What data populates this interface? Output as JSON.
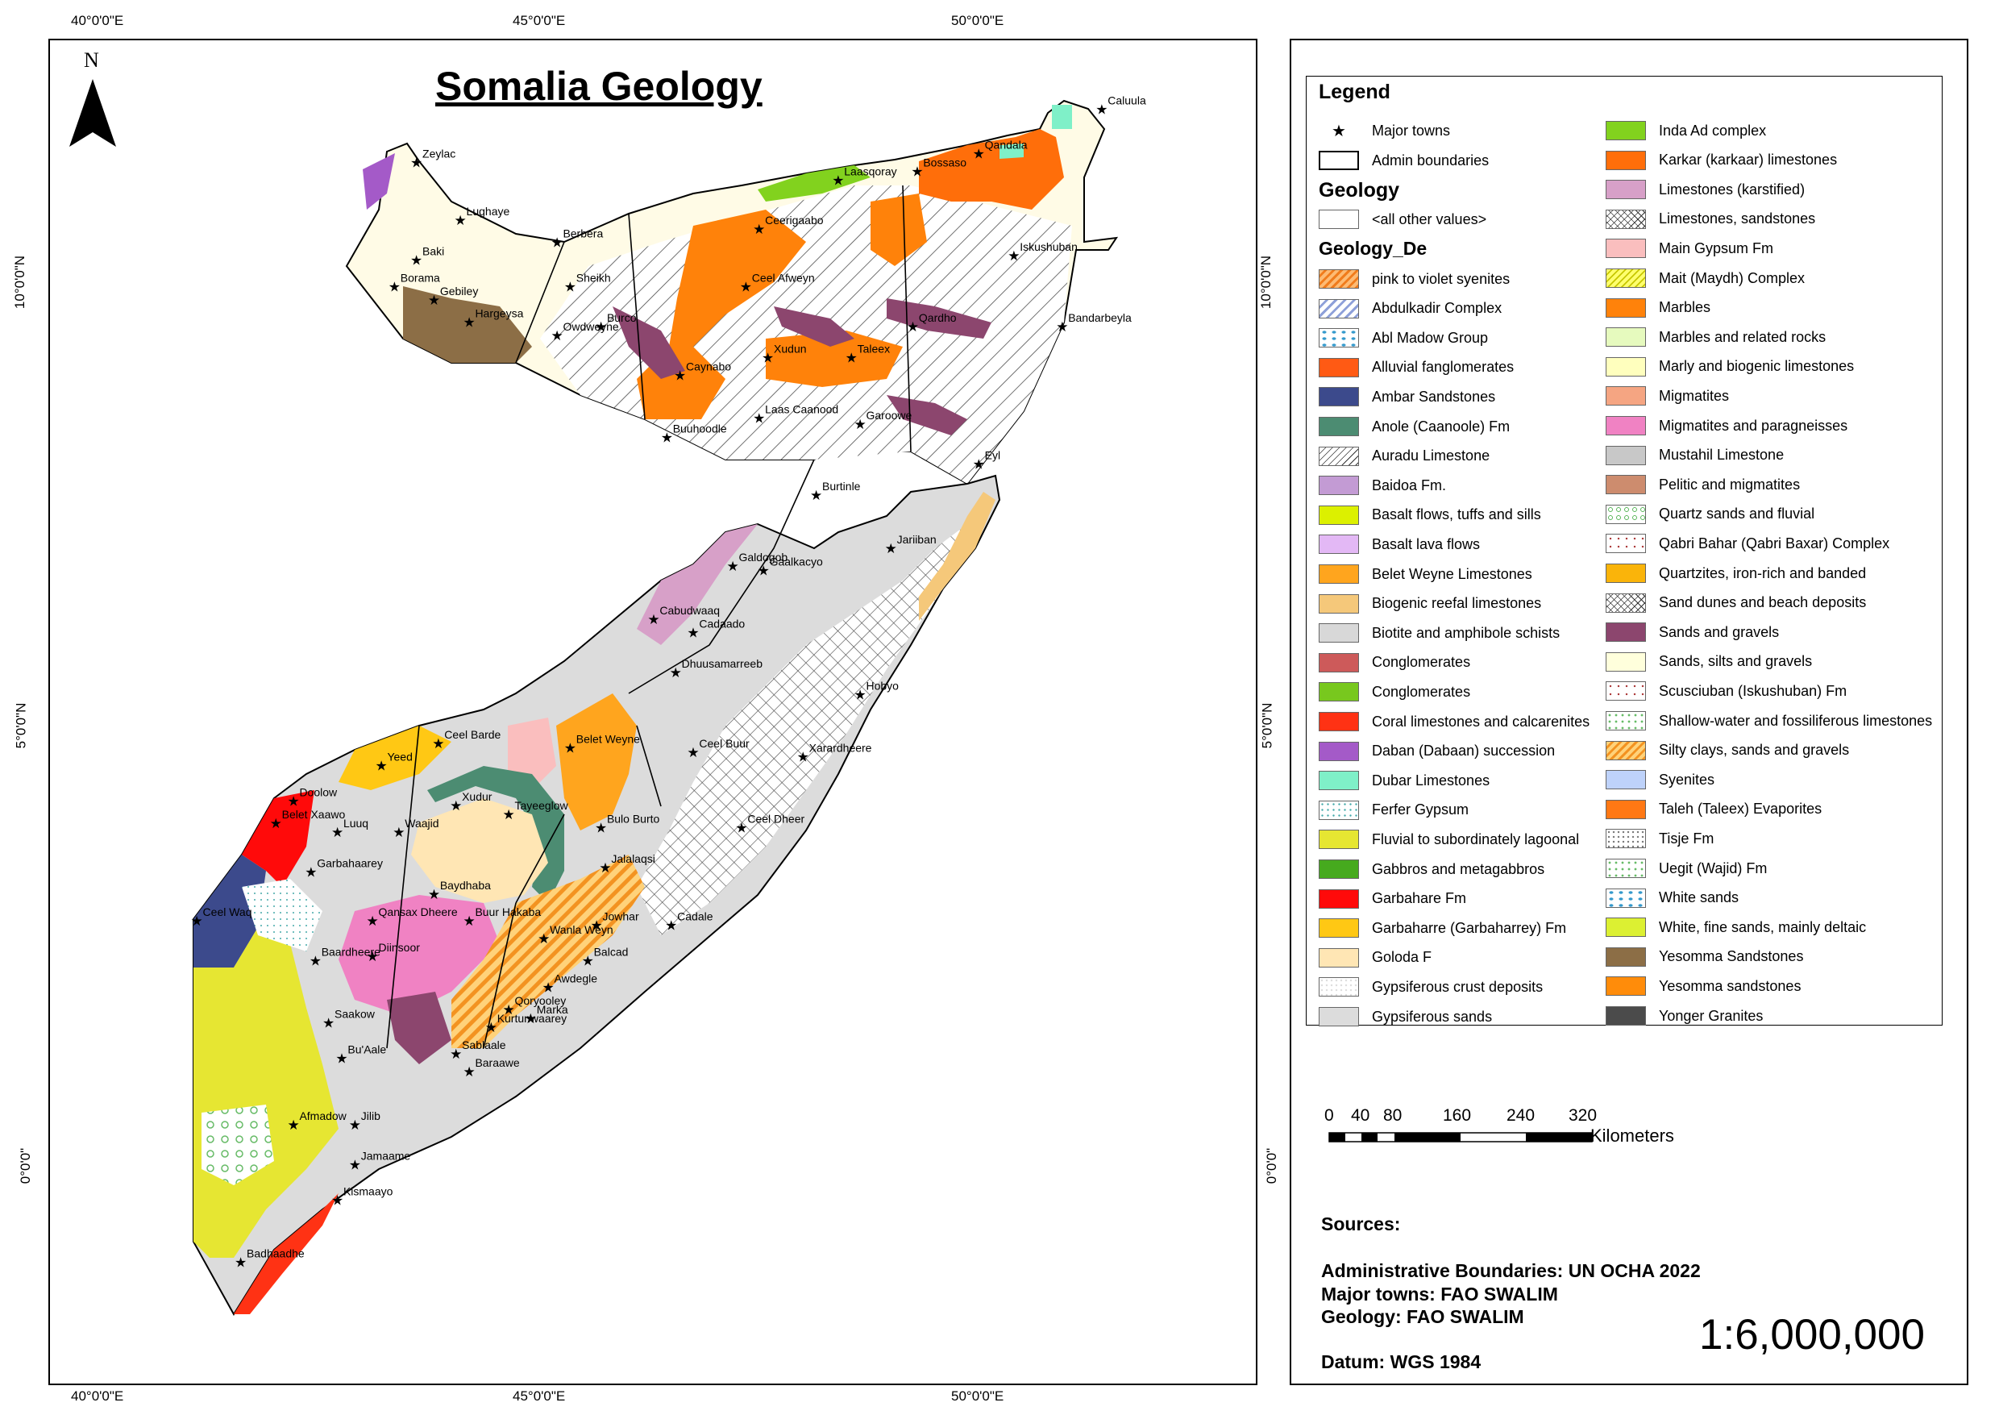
{
  "map": {
    "title": "Somalia Geology",
    "north_label": "N",
    "graticule": {
      "top": [
        "40°0'0\"E",
        "45°0'0\"E",
        "50°0'0\"E"
      ],
      "bottom": [
        "40°0'0\"E",
        "45°0'0\"E",
        "50°0'0\"E"
      ],
      "left": [
        "10°0'0\"N",
        "5°0'0\"N",
        "0°0'0\""
      ],
      "right": [
        "10°0'0\"N",
        "5°0'0\"N",
        "0°0'0\""
      ]
    },
    "towns": [
      {
        "name": "Caluula",
        "lon": 51.25,
        "lat": 11.95
      },
      {
        "name": "Qandala",
        "lon": 49.85,
        "lat": 11.45
      },
      {
        "name": "Bossaso",
        "lon": 49.15,
        "lat": 11.25
      },
      {
        "name": "Laasqoray",
        "lon": 48.25,
        "lat": 11.15
      },
      {
        "name": "Zeylac",
        "lon": 43.45,
        "lat": 11.35
      },
      {
        "name": "Lughaye",
        "lon": 43.95,
        "lat": 10.7
      },
      {
        "name": "Berbera",
        "lon": 45.05,
        "lat": 10.45
      },
      {
        "name": "Ceerigaabo",
        "lon": 47.35,
        "lat": 10.6
      },
      {
        "name": "Iskushuban",
        "lon": 50.25,
        "lat": 10.3
      },
      {
        "name": "Baki",
        "lon": 43.45,
        "lat": 10.25
      },
      {
        "name": "Borama",
        "lon": 43.2,
        "lat": 9.95
      },
      {
        "name": "Sheikh",
        "lon": 45.2,
        "lat": 9.95
      },
      {
        "name": "Ceel Afweyn",
        "lon": 47.2,
        "lat": 9.95
      },
      {
        "name": "Hargeysa",
        "lon": 44.05,
        "lat": 9.55
      },
      {
        "name": "Gebiley",
        "lon": 43.65,
        "lat": 9.8
      },
      {
        "name": "Burco",
        "lon": 45.55,
        "lat": 9.5
      },
      {
        "name": "Qardho",
        "lon": 49.1,
        "lat": 9.5
      },
      {
        "name": "Bandarbeyla",
        "lon": 50.8,
        "lat": 9.5
      },
      {
        "name": "Owdweyne",
        "lon": 45.05,
        "lat": 9.4
      },
      {
        "name": "Xudun",
        "lon": 47.45,
        "lat": 9.15
      },
      {
        "name": "Taleex",
        "lon": 48.4,
        "lat": 9.15
      },
      {
        "name": "Caynabo",
        "lon": 46.45,
        "lat": 8.95
      },
      {
        "name": "Laas Caanood",
        "lon": 47.35,
        "lat": 8.47
      },
      {
        "name": "Garoowe",
        "lon": 48.5,
        "lat": 8.4
      },
      {
        "name": "Buuhoodle",
        "lon": 46.3,
        "lat": 8.25
      },
      {
        "name": "Eyl",
        "lon": 49.85,
        "lat": 7.95
      },
      {
        "name": "Burtinle",
        "lon": 48.0,
        "lat": 7.6
      },
      {
        "name": "Jariiban",
        "lon": 48.85,
        "lat": 7.0
      },
      {
        "name": "Galdogob",
        "lon": 47.05,
        "lat": 6.8
      },
      {
        "name": "Gaalkacyo",
        "lon": 47.4,
        "lat": 6.75
      },
      {
        "name": "Cabudwaaq",
        "lon": 46.15,
        "lat": 6.2
      },
      {
        "name": "Cadaado",
        "lon": 46.6,
        "lat": 6.05
      },
      {
        "name": "Dhuusamarreeb",
        "lon": 46.4,
        "lat": 5.6
      },
      {
        "name": "Hobyo",
        "lon": 48.5,
        "lat": 5.35
      },
      {
        "name": "Ceel Barde",
        "lon": 43.7,
        "lat": 4.8
      },
      {
        "name": "Yeed",
        "lon": 43.05,
        "lat": 4.55
      },
      {
        "name": "Belet Weyne",
        "lon": 45.2,
        "lat": 4.75
      },
      {
        "name": "Ceel Buur",
        "lon": 46.6,
        "lat": 4.7
      },
      {
        "name": "Xarardheere",
        "lon": 47.85,
        "lat": 4.65
      },
      {
        "name": "Doolow",
        "lon": 42.05,
        "lat": 4.15
      },
      {
        "name": "Xudur",
        "lon": 43.9,
        "lat": 4.1
      },
      {
        "name": "Tayeeglow",
        "lon": 44.5,
        "lat": 4.0
      },
      {
        "name": "Luuq",
        "lon": 42.55,
        "lat": 3.8
      },
      {
        "name": "Waajid",
        "lon": 43.25,
        "lat": 3.8
      },
      {
        "name": "Belet Xaawo",
        "lon": 41.85,
        "lat": 3.9
      },
      {
        "name": "Bulo Burto",
        "lon": 45.55,
        "lat": 3.85
      },
      {
        "name": "Ceel Dheer",
        "lon": 47.15,
        "lat": 3.85
      },
      {
        "name": "Garbahaarey",
        "lon": 42.25,
        "lat": 3.35
      },
      {
        "name": "Jalalaqsi",
        "lon": 45.6,
        "lat": 3.4
      },
      {
        "name": "Baydhaba",
        "lon": 43.65,
        "lat": 3.1
      },
      {
        "name": "Qansax Dheere",
        "lon": 42.95,
        "lat": 2.8
      },
      {
        "name": "Ceel Waq",
        "lon": 40.95,
        "lat": 2.8
      },
      {
        "name": "Buur Hakaba",
        "lon": 44.05,
        "lat": 2.8
      },
      {
        "name": "Wanla Weyn",
        "lon": 44.9,
        "lat": 2.6
      },
      {
        "name": "Jowhar",
        "lon": 45.5,
        "lat": 2.75
      },
      {
        "name": "Cadale",
        "lon": 46.35,
        "lat": 2.75
      },
      {
        "name": "Baardheere",
        "lon": 42.3,
        "lat": 2.35
      },
      {
        "name": "Diinsoor",
        "lon": 42.95,
        "lat": 2.4
      },
      {
        "name": "Balcad",
        "lon": 45.4,
        "lat": 2.35
      },
      {
        "name": "Awdegle",
        "lon": 44.95,
        "lat": 2.05
      },
      {
        "name": "Qoryooley",
        "lon": 44.5,
        "lat": 1.8
      },
      {
        "name": "Marka",
        "lon": 44.75,
        "lat": 1.7
      },
      {
        "name": "Saakow",
        "lon": 42.45,
        "lat": 1.65
      },
      {
        "name": "Kurtunwaarey",
        "lon": 44.3,
        "lat": 1.6
      },
      {
        "name": "Sablaale",
        "lon": 43.9,
        "lat": 1.3
      },
      {
        "name": "Bu'Aale",
        "lon": 42.6,
        "lat": 1.25
      },
      {
        "name": "Baraawe",
        "lon": 44.05,
        "lat": 1.1
      },
      {
        "name": "Afmadow",
        "lon": 42.05,
        "lat": 0.5
      },
      {
        "name": "Jilib",
        "lon": 42.75,
        "lat": 0.5
      },
      {
        "name": "Jamaame",
        "lon": 42.75,
        "lat": 0.05
      },
      {
        "name": "Kismaayo",
        "lon": 42.55,
        "lat": -0.35
      },
      {
        "name": "Badhaadhe",
        "lon": 41.45,
        "lat": -1.05
      }
    ]
  },
  "legend": {
    "title": "Legend",
    "towns_label": "Major towns",
    "admin_label": "Admin boundaries",
    "geology_title": "Geology",
    "other_values": "<all other values>",
    "field_title": "Geology_De",
    "left_items": [
      {
        "label": "pink to violet syenites",
        "pattern": "h-pink-sy"
      },
      {
        "label": "Abdulkadir Complex",
        "pattern": "h-abdul"
      },
      {
        "label": "Abl Madow Group",
        "pattern": "h-blue-swirl"
      },
      {
        "label": "Alluvial fanglomerates",
        "color": "#ff5a14"
      },
      {
        "label": "Ambar Sandstones",
        "color": "#3c4a8c"
      },
      {
        "label": "Anole (Caanoole) Fm",
        "color": "#4c8c72"
      },
      {
        "label": "Auradu Limestone",
        "pattern": "h-auradu"
      },
      {
        "label": "Baidoa Fm.",
        "color": "#c39bd4"
      },
      {
        "label": "Basalt flows, tuffs and sills",
        "color": "#dcf000"
      },
      {
        "label": "Basalt lava flows",
        "color": "#e3b8f5"
      },
      {
        "label": "Belet Weyne Limestones",
        "color": "#ffa51e"
      },
      {
        "label": "Biogenic reefal limestones",
        "color": "#f5c87a"
      },
      {
        "label": "Biotite and amphibole schists",
        "color": "#d8d8d8"
      },
      {
        "label": "Conglomerates",
        "color": "#cd5a5a"
      },
      {
        "label": "Conglomerates",
        "color": "#78c81e"
      },
      {
        "label": "Coral limestones and calcarenites",
        "color": "#ff3214"
      },
      {
        "label": "Daban (Dabaan) succession",
        "color": "#a45ac8"
      },
      {
        "label": "Dubar Limestones",
        "color": "#7ff0c8"
      },
      {
        "label": "Ferfer Gypsum",
        "pattern": "h-ferfer"
      },
      {
        "label": "Fluvial to subordinately lagoonal",
        "color": "#e6e632"
      },
      {
        "label": "Gabbros and metagabbros",
        "color": "#46aa1e"
      },
      {
        "label": "Garbahare Fm",
        "color": "#ff0a0a"
      },
      {
        "label": "Garbaharre (Garbaharrey) Fm",
        "color": "#ffc814"
      },
      {
        "label": "Goloda F",
        "color": "#ffe6b4"
      },
      {
        "label": "Gypsiferous crust deposits",
        "pattern": "h-gyps"
      },
      {
        "label": "Gypsiferous sands",
        "color": "#dcdcdc"
      }
    ],
    "right_items": [
      {
        "label": "Inda Ad complex",
        "color": "#82d21e"
      },
      {
        "label": "Karkar (karkaar) limestones",
        "color": "#ff6e0a"
      },
      {
        "label": "Limestones (karstified)",
        "color": "#d7a0c8"
      },
      {
        "label": "Limestones, sandstones",
        "pattern": "h-cross"
      },
      {
        "label": "Main Gypsum Fm",
        "color": "#fabebe"
      },
      {
        "label": "Mait (Maydh) Complex",
        "pattern": "h-mait"
      },
      {
        "label": "Marbles",
        "color": "#ff820a"
      },
      {
        "label": "Marbles and related rocks",
        "color": "#e6fabe"
      },
      {
        "label": "Marly and biogenic limestones",
        "color": "#ffffbe"
      },
      {
        "label": "Migmatites",
        "color": "#f5a582"
      },
      {
        "label": "Migmatites and paragneisses",
        "color": "#f082c3"
      },
      {
        "label": "Mustahil Limestone",
        "color": "#c8c8c8"
      },
      {
        "label": "Pelitic and migmatites",
        "color": "#cd8c6e"
      },
      {
        "label": "Quartz sands  and fluvial",
        "pattern": "h-quartz"
      },
      {
        "label": "Qabri Bahar (Qabri Baxar) Complex",
        "pattern": "h-red-dots"
      },
      {
        "label": "Quartzites, iron-rich and banded",
        "color": "#fab40a"
      },
      {
        "label": "Sand dunes and beach deposits",
        "pattern": "h-cross"
      },
      {
        "label": "Sands and gravels",
        "color": "#8c466e"
      },
      {
        "label": "Sands, silts and gravels",
        "color": "#ffffdc"
      },
      {
        "label": "Scusciuban (Iskushuban) Fm",
        "pattern": "h-red-dots"
      },
      {
        "label": "Shallow-water and fossiliferous limestones",
        "pattern": "h-green-dots"
      },
      {
        "label": "Silty clays, sands and gravels",
        "pattern": "h-silty"
      },
      {
        "label": "Syenites",
        "color": "#bed2fa"
      },
      {
        "label": "Taleh (Taleex) Evaporites",
        "color": "#ff7814"
      },
      {
        "label": "Tisje Fm",
        "pattern": "h-dots"
      },
      {
        "label": "Uegit (Wajid) Fm",
        "pattern": "h-green-dots"
      },
      {
        "label": "White sands",
        "pattern": "h-blue-swirl"
      },
      {
        "label": "White, fine sands, mainly deltaic",
        "color": "#dcf032"
      },
      {
        "label": "Yesomma Sandstones",
        "color": "#8c6e46"
      },
      {
        "label": "Yesomma sandstones",
        "color": "#ff8c0a"
      },
      {
        "label": "Yonger Granites",
        "color": "#4b4b4b"
      }
    ]
  },
  "scale_bar": {
    "ticks": [
      "0",
      "40",
      "80",
      "160",
      "240",
      "320"
    ],
    "unit": "Kilometers"
  },
  "sources": {
    "heading": "Sources:",
    "admin": "Administrative Boundaries: UN OCHA 2022",
    "towns": "Major towns: FAO SWALIM",
    "geology": "Geology: FAO SWALIM",
    "datum": "Datum: WGS 1984"
  },
  "ratio": "1:6,000,000"
}
